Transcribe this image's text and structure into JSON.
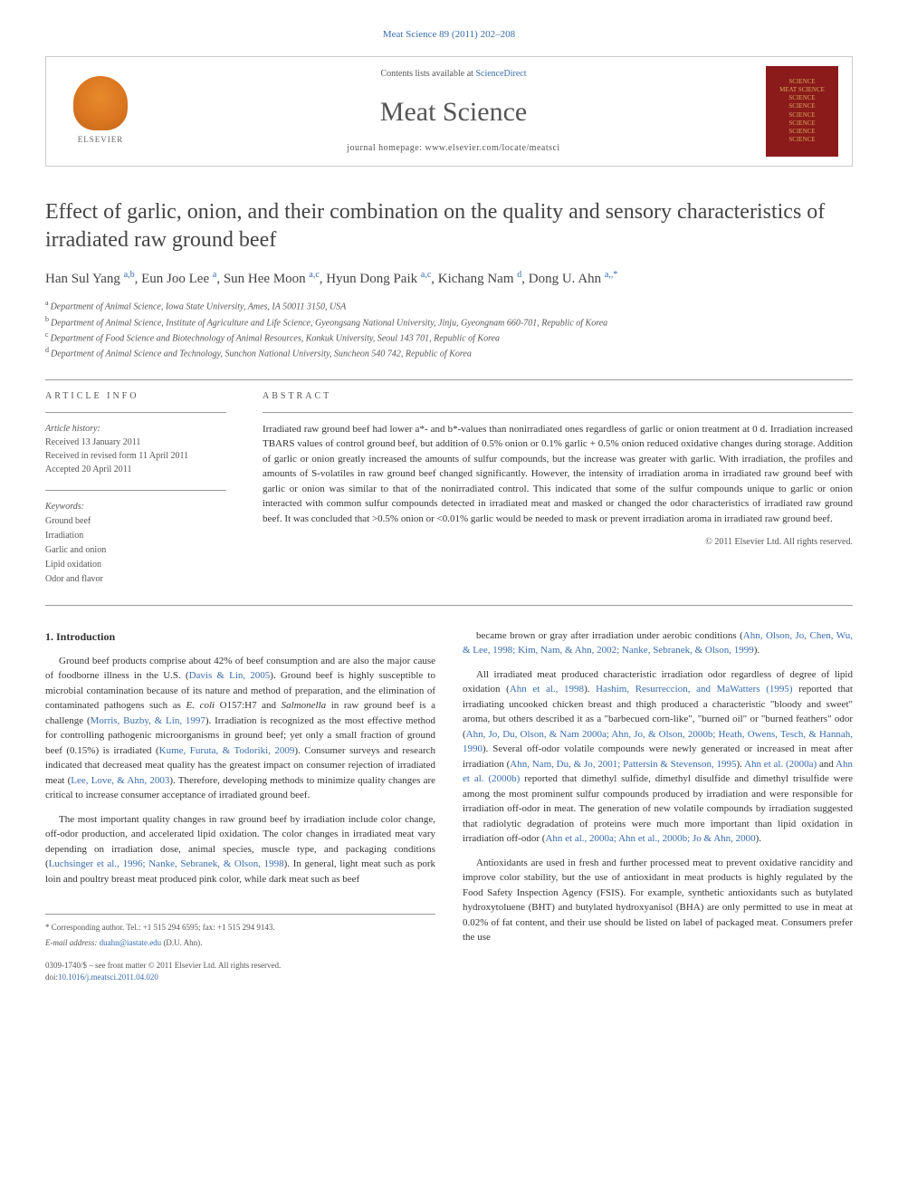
{
  "top_link": "Meat Science 89 (2011) 202–208",
  "header": {
    "contents_prefix": "Contents lists available at ",
    "contents_link": "ScienceDirect",
    "journal_name": "Meat Science",
    "homepage_prefix": "journal homepage: ",
    "homepage": "www.elsevier.com/locate/meatsci",
    "publisher": "ELSEVIER",
    "cover_lines": [
      "SCIENCE",
      "MEAT SCIENCE",
      "SCIENCE",
      "SCIENCE",
      "SCIENCE",
      "SCIENCE",
      "SCIENCE",
      "SCIENCE"
    ]
  },
  "title": "Effect of garlic, onion, and their combination on the quality and sensory characteristics of irradiated raw ground beef",
  "authors": [
    {
      "name": "Han Sul Yang",
      "aff": "a,b"
    },
    {
      "name": "Eun Joo Lee",
      "aff": "a"
    },
    {
      "name": "Sun Hee Moon",
      "aff": "a,c"
    },
    {
      "name": "Hyun Dong Paik",
      "aff": "a,c"
    },
    {
      "name": "Kichang Nam",
      "aff": "d"
    },
    {
      "name": "Dong U. Ahn",
      "aff": "a,*"
    }
  ],
  "affiliations": [
    {
      "sup": "a",
      "text": "Department of Animal Science, Iowa State University, Ames, IA 50011 3150, USA"
    },
    {
      "sup": "b",
      "text": "Department of Animal Science, Institute of Agriculture and Life Science, Gyeongsang National University, Jinju, Gyeongnam 660-701, Republic of Korea"
    },
    {
      "sup": "c",
      "text": "Department of Food Science and Biotechnology of Animal Resources, Konkuk University, Seoul 143 701, Republic of Korea"
    },
    {
      "sup": "d",
      "text": "Department of Animal Science and Technology, Sunchon National University, Suncheon 540 742, Republic of Korea"
    }
  ],
  "article_info": {
    "label": "ARTICLE INFO",
    "history_label": "Article history:",
    "received": "Received 13 January 2011",
    "revised": "Received in revised form 11 April 2011",
    "accepted": "Accepted 20 April 2011",
    "keywords_label": "Keywords:",
    "keywords": [
      "Ground beef",
      "Irradiation",
      "Garlic and onion",
      "Lipid oxidation",
      "Odor and flavor"
    ]
  },
  "abstract": {
    "label": "ABSTRACT",
    "text": "Irradiated raw ground beef had lower a*- and b*-values than nonirradiated ones regardless of garlic or onion treatment at 0 d. Irradiation increased TBARS values of control ground beef, but addition of 0.5% onion or 0.1% garlic + 0.5% onion reduced oxidative changes during storage. Addition of garlic or onion greatly increased the amounts of sulfur compounds, but the increase was greater with garlic. With irradiation, the profiles and amounts of S-volatiles in raw ground beef changed significantly. However, the intensity of irradiation aroma in irradiated raw ground beef with garlic or onion was similar to that of the nonirradiated control. This indicated that some of the sulfur compounds unique to garlic or onion interacted with common sulfur compounds detected in irradiated meat and masked or changed the odor characteristics of irradiated raw ground beef. It was concluded that >0.5% onion or <0.01% garlic would be needed to mask or prevent irradiation aroma in irradiated raw ground beef.",
    "copyright": "© 2011 Elsevier Ltd. All rights reserved."
  },
  "intro": {
    "heading": "1. Introduction",
    "col1": [
      "Ground beef products comprise about 42% of beef consumption and are also the major cause of foodborne illness in the U.S. (<ref>Davis & Lin, 2005</ref>). Ground beef is highly susceptible to microbial contamination because of its nature and method of preparation, and the elimination of contaminated pathogens such as <ital>E. coli</ital> O157:H7 and <ital>Salmonella</ital> in raw ground beef is a challenge (<ref>Morris, Buzby, & Lin, 1997</ref>). Irradiation is recognized as the most effective method for controlling pathogenic microorganisms in ground beef; yet only a small fraction of ground beef (0.15%) is irradiated (<ref>Kume, Furuta, & Todoriki, 2009</ref>). Consumer surveys and research indicated that decreased meat quality has the greatest impact on consumer rejection of irradiated meat (<ref>Lee, Love, & Ahn, 2003</ref>). Therefore, developing methods to minimize quality changes are critical to increase consumer acceptance of irradiated ground beef.",
      "The most important quality changes in raw ground beef by irradiation include color change, off-odor production, and accelerated lipid oxidation. The color changes in irradiated meat vary depending on irradiation dose, animal species, muscle type, and packaging conditions (<ref>Luchsinger et al., 1996; Nanke, Sebranek, & Olson, 1998</ref>). In general, light meat such as pork loin and poultry breast meat produced pink color, while dark meat such as beef"
    ],
    "col2": [
      "became brown or gray after irradiation under aerobic conditions (<ref>Ahn, Olson, Jo, Chen, Wu, & Lee, 1998; Kim, Nam, & Ahn, 2002; Nanke, Sebranek, & Olson, 1999</ref>).",
      "All irradiated meat produced characteristic irradiation odor regardless of degree of lipid oxidation (<ref>Ahn et al., 1998</ref>). <ref>Hashim, Resurreccion, and MaWatters (1995)</ref> reported that irradiating uncooked chicken breast and thigh produced a characteristic \"bloody and sweet\" aroma, but others described it as a \"barbecued corn-like\", \"burned oil\" or \"burned feathers\" odor (<ref>Ahn, Jo, Du, Olson, & Nam 2000a; Ahn, Jo, & Olson, 2000b; Heath, Owens, Tesch, & Hannah, 1990</ref>). Several off-odor volatile compounds were newly generated or increased in meat after irradiation (<ref>Ahn, Nam, Du, & Jo, 2001; Pattersin & Stevenson, 1995</ref>). <ref>Ahn et al. (2000a)</ref> and <ref>Ahn et al. (2000b)</ref> reported that dimethyl sulfide, dimethyl disulfide and dimethyl trisulfide were among the most prominent sulfur compounds produced by irradiation and were responsible for irradiation off-odor in meat. The generation of new volatile compounds by irradiation suggested that radiolytic degradation of proteins were much more important than lipid oxidation in irradiation off-odor (<ref>Ahn et al., 2000a; Ahn et al., 2000b; Jo & Ahn, 2000</ref>).",
      "Antioxidants are used in fresh and further processed meat to prevent oxidative rancidity and improve color stability, but the use of antioxidant in meat products is highly regulated by the Food Safety Inspection Agency (FSIS). For example, synthetic antioxidants such as butylated hydroxytoluene (BHT) and butylated hydroxyanisol (BHA) are only permitted to use in meat at 0.02% of fat content, and their use should be listed on label of packaged meat. Consumers prefer the use"
    ]
  },
  "footer": {
    "corr": "* Corresponding author. Tel.: +1 515 294 6595; fax: +1 515 294 9143.",
    "email_label": "E-mail address: ",
    "email": "duahn@iastate.edu",
    "email_suffix": " (D.U. Ahn).",
    "issn": "0309-1740/$ – see front matter © 2011 Elsevier Ltd. All rights reserved.",
    "doi_prefix": "doi:",
    "doi": "10.1016/j.meatsci.2011.04.020"
  }
}
